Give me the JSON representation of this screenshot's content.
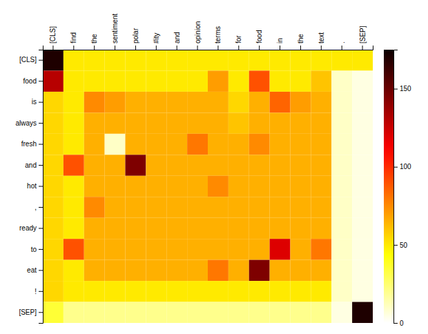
{
  "chart_data": {
    "type": "heatmap",
    "x_categories": [
      "[CLS]",
      "find",
      "the",
      "sentiment",
      "polar",
      "#ity",
      "and",
      "opinion",
      "terms",
      "for",
      "food",
      "in",
      "the",
      "text",
      ".",
      "[SEP]"
    ],
    "y_categories": [
      "[CLS]",
      "food",
      "is",
      "always",
      "fresh",
      "and",
      "hot",
      ",",
      "ready",
      "to",
      "eat",
      "!",
      "[SEP]"
    ],
    "values": [
      [
        170,
        50,
        50,
        50,
        50,
        50,
        50,
        50,
        50,
        50,
        50,
        50,
        50,
        50,
        50,
        50
      ],
      [
        130,
        50,
        50,
        50,
        50,
        50,
        50,
        50,
        70,
        50,
        90,
        50,
        50,
        60,
        10,
        5
      ],
      [
        55,
        50,
        75,
        70,
        65,
        65,
        65,
        65,
        65,
        55,
        65,
        85,
        70,
        65,
        10,
        5
      ],
      [
        55,
        50,
        65,
        65,
        65,
        65,
        65,
        65,
        65,
        60,
        65,
        65,
        65,
        65,
        10,
        5
      ],
      [
        55,
        50,
        65,
        10,
        65,
        65,
        65,
        80,
        65,
        65,
        75,
        65,
        65,
        65,
        10,
        5
      ],
      [
        55,
        90,
        65,
        65,
        145,
        65,
        65,
        65,
        65,
        65,
        65,
        65,
        65,
        65,
        10,
        5
      ],
      [
        55,
        50,
        65,
        65,
        65,
        65,
        65,
        65,
        75,
        65,
        65,
        65,
        65,
        65,
        10,
        5
      ],
      [
        55,
        50,
        75,
        65,
        65,
        65,
        65,
        65,
        65,
        65,
        65,
        65,
        65,
        65,
        10,
        5
      ],
      [
        55,
        50,
        65,
        65,
        65,
        65,
        65,
        65,
        65,
        65,
        65,
        65,
        65,
        65,
        10,
        5
      ],
      [
        55,
        90,
        65,
        65,
        65,
        65,
        65,
        65,
        65,
        65,
        65,
        120,
        65,
        80,
        10,
        5
      ],
      [
        55,
        50,
        65,
        65,
        65,
        65,
        65,
        65,
        80,
        65,
        145,
        65,
        65,
        65,
        10,
        5
      ],
      [
        55,
        50,
        50,
        50,
        50,
        50,
        50,
        50,
        50,
        50,
        50,
        50,
        50,
        50,
        10,
        5
      ],
      [
        35,
        20,
        20,
        20,
        20,
        20,
        20,
        20,
        20,
        20,
        20,
        20,
        20,
        20,
        5,
        170
      ]
    ],
    "colorbar_lim": [
      0,
      175
    ],
    "colorbar_ticks": [
      0,
      50,
      100,
      150
    ]
  }
}
